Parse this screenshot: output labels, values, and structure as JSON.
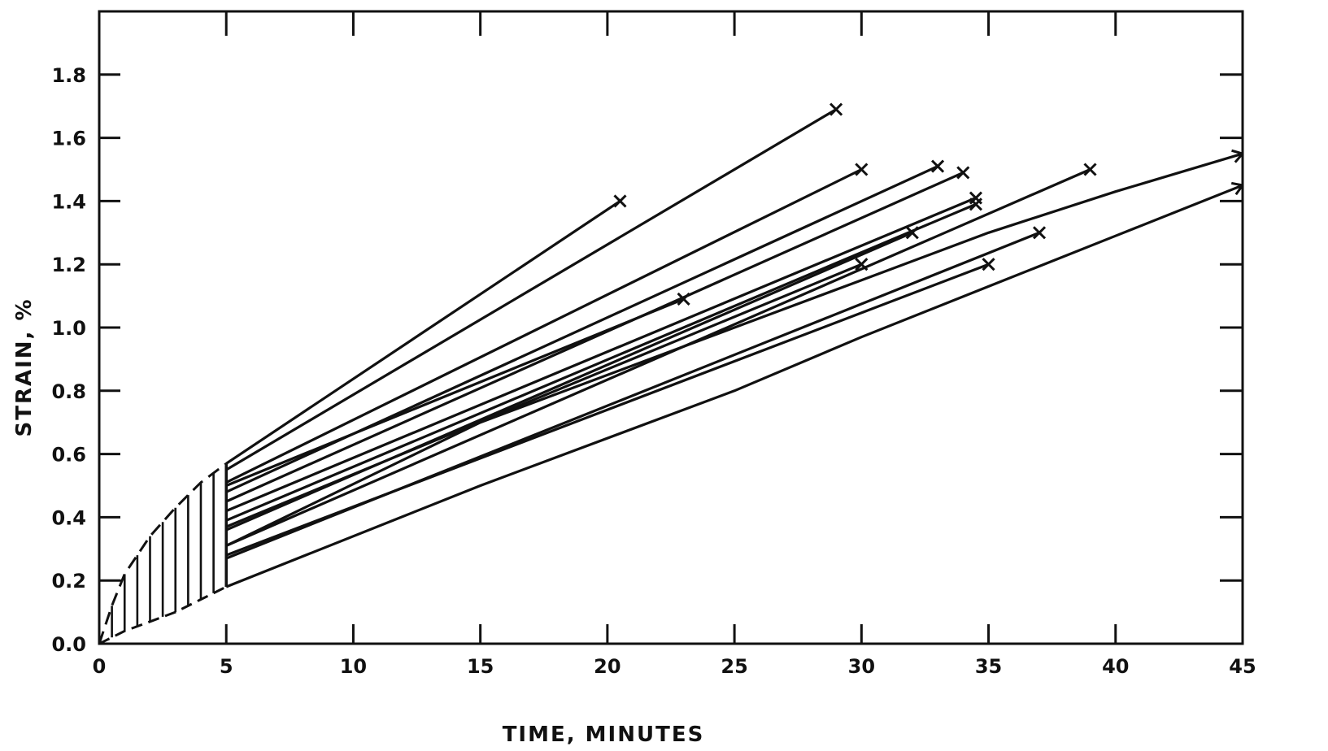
{
  "chart_data": {
    "type": "line",
    "title": "",
    "xlabel": "TIME, MINUTES",
    "ylabel": "STRAIN, %",
    "xlim": [
      0,
      45
    ],
    "ylim": [
      0,
      2.0
    ],
    "xticks": [
      "0",
      "5",
      "10",
      "15",
      "20",
      "25",
      "30",
      "35",
      "40",
      "45"
    ],
    "yticks": [
      "0.0",
      "0.2",
      "0.4",
      "0.6",
      "0.8",
      "1.0",
      "1.2",
      "1.4",
      "1.6",
      "1.8"
    ],
    "grid": false,
    "loading_region": {
      "x_range": [
        0,
        5
      ],
      "lower_boundary": [
        [
          0,
          0
        ],
        [
          1,
          0.04
        ],
        [
          2,
          0.07
        ],
        [
          3,
          0.1
        ],
        [
          4,
          0.14
        ],
        [
          5,
          0.18
        ]
      ],
      "upper_boundary": [
        [
          0,
          0
        ],
        [
          0.5,
          0.12
        ],
        [
          1,
          0.22
        ],
        [
          2,
          0.34
        ],
        [
          3,
          0.43
        ],
        [
          4,
          0.51
        ],
        [
          5,
          0.57
        ]
      ]
    },
    "series": [
      {
        "x": [
          5,
          20.5
        ],
        "y": [
          0.57,
          1.4
        ],
        "end": "failure"
      },
      {
        "x": [
          5,
          29
        ],
        "y": [
          0.55,
          1.69
        ],
        "end": "failure"
      },
      {
        "x": [
          5,
          30
        ],
        "y": [
          0.51,
          1.5
        ],
        "end": "failure"
      },
      {
        "x": [
          5,
          33
        ],
        "y": [
          0.48,
          1.51
        ],
        "end": "failure"
      },
      {
        "x": [
          5,
          34
        ],
        "y": [
          0.45,
          1.49
        ],
        "end": "failure"
      },
      {
        "x": [
          5,
          23
        ],
        "y": [
          0.5,
          1.09
        ],
        "end": "failure"
      },
      {
        "x": [
          5,
          34.5
        ],
        "y": [
          0.42,
          1.41
        ],
        "end": "failure"
      },
      {
        "x": [
          5,
          34.5
        ],
        "y": [
          0.39,
          1.39
        ],
        "end": "failure"
      },
      {
        "x": [
          5,
          32
        ],
        "y": [
          0.36,
          1.3
        ],
        "end": "failure"
      },
      {
        "x": [
          5,
          30
        ],
        "y": [
          0.37,
          1.2
        ],
        "end": "failure"
      },
      {
        "x": [
          5,
          39
        ],
        "y": [
          0.31,
          1.5
        ],
        "end": "failure"
      },
      {
        "x": [
          5,
          37
        ],
        "y": [
          0.27,
          1.3
        ],
        "end": "failure"
      },
      {
        "x": [
          5,
          35
        ],
        "y": [
          0.28,
          1.2
        ],
        "end": "failure"
      },
      {
        "x": [
          5,
          15,
          25,
          30,
          35,
          40,
          45
        ],
        "y": [
          0.31,
          0.7,
          1.0,
          1.15,
          1.3,
          1.43,
          1.55
        ],
        "end": "continuing"
      },
      {
        "x": [
          5,
          15,
          25,
          30,
          35,
          40,
          45
        ],
        "y": [
          0.18,
          0.5,
          0.8,
          0.97,
          1.13,
          1.29,
          1.45
        ],
        "end": "continuing"
      }
    ],
    "line_color": "#111111"
  }
}
